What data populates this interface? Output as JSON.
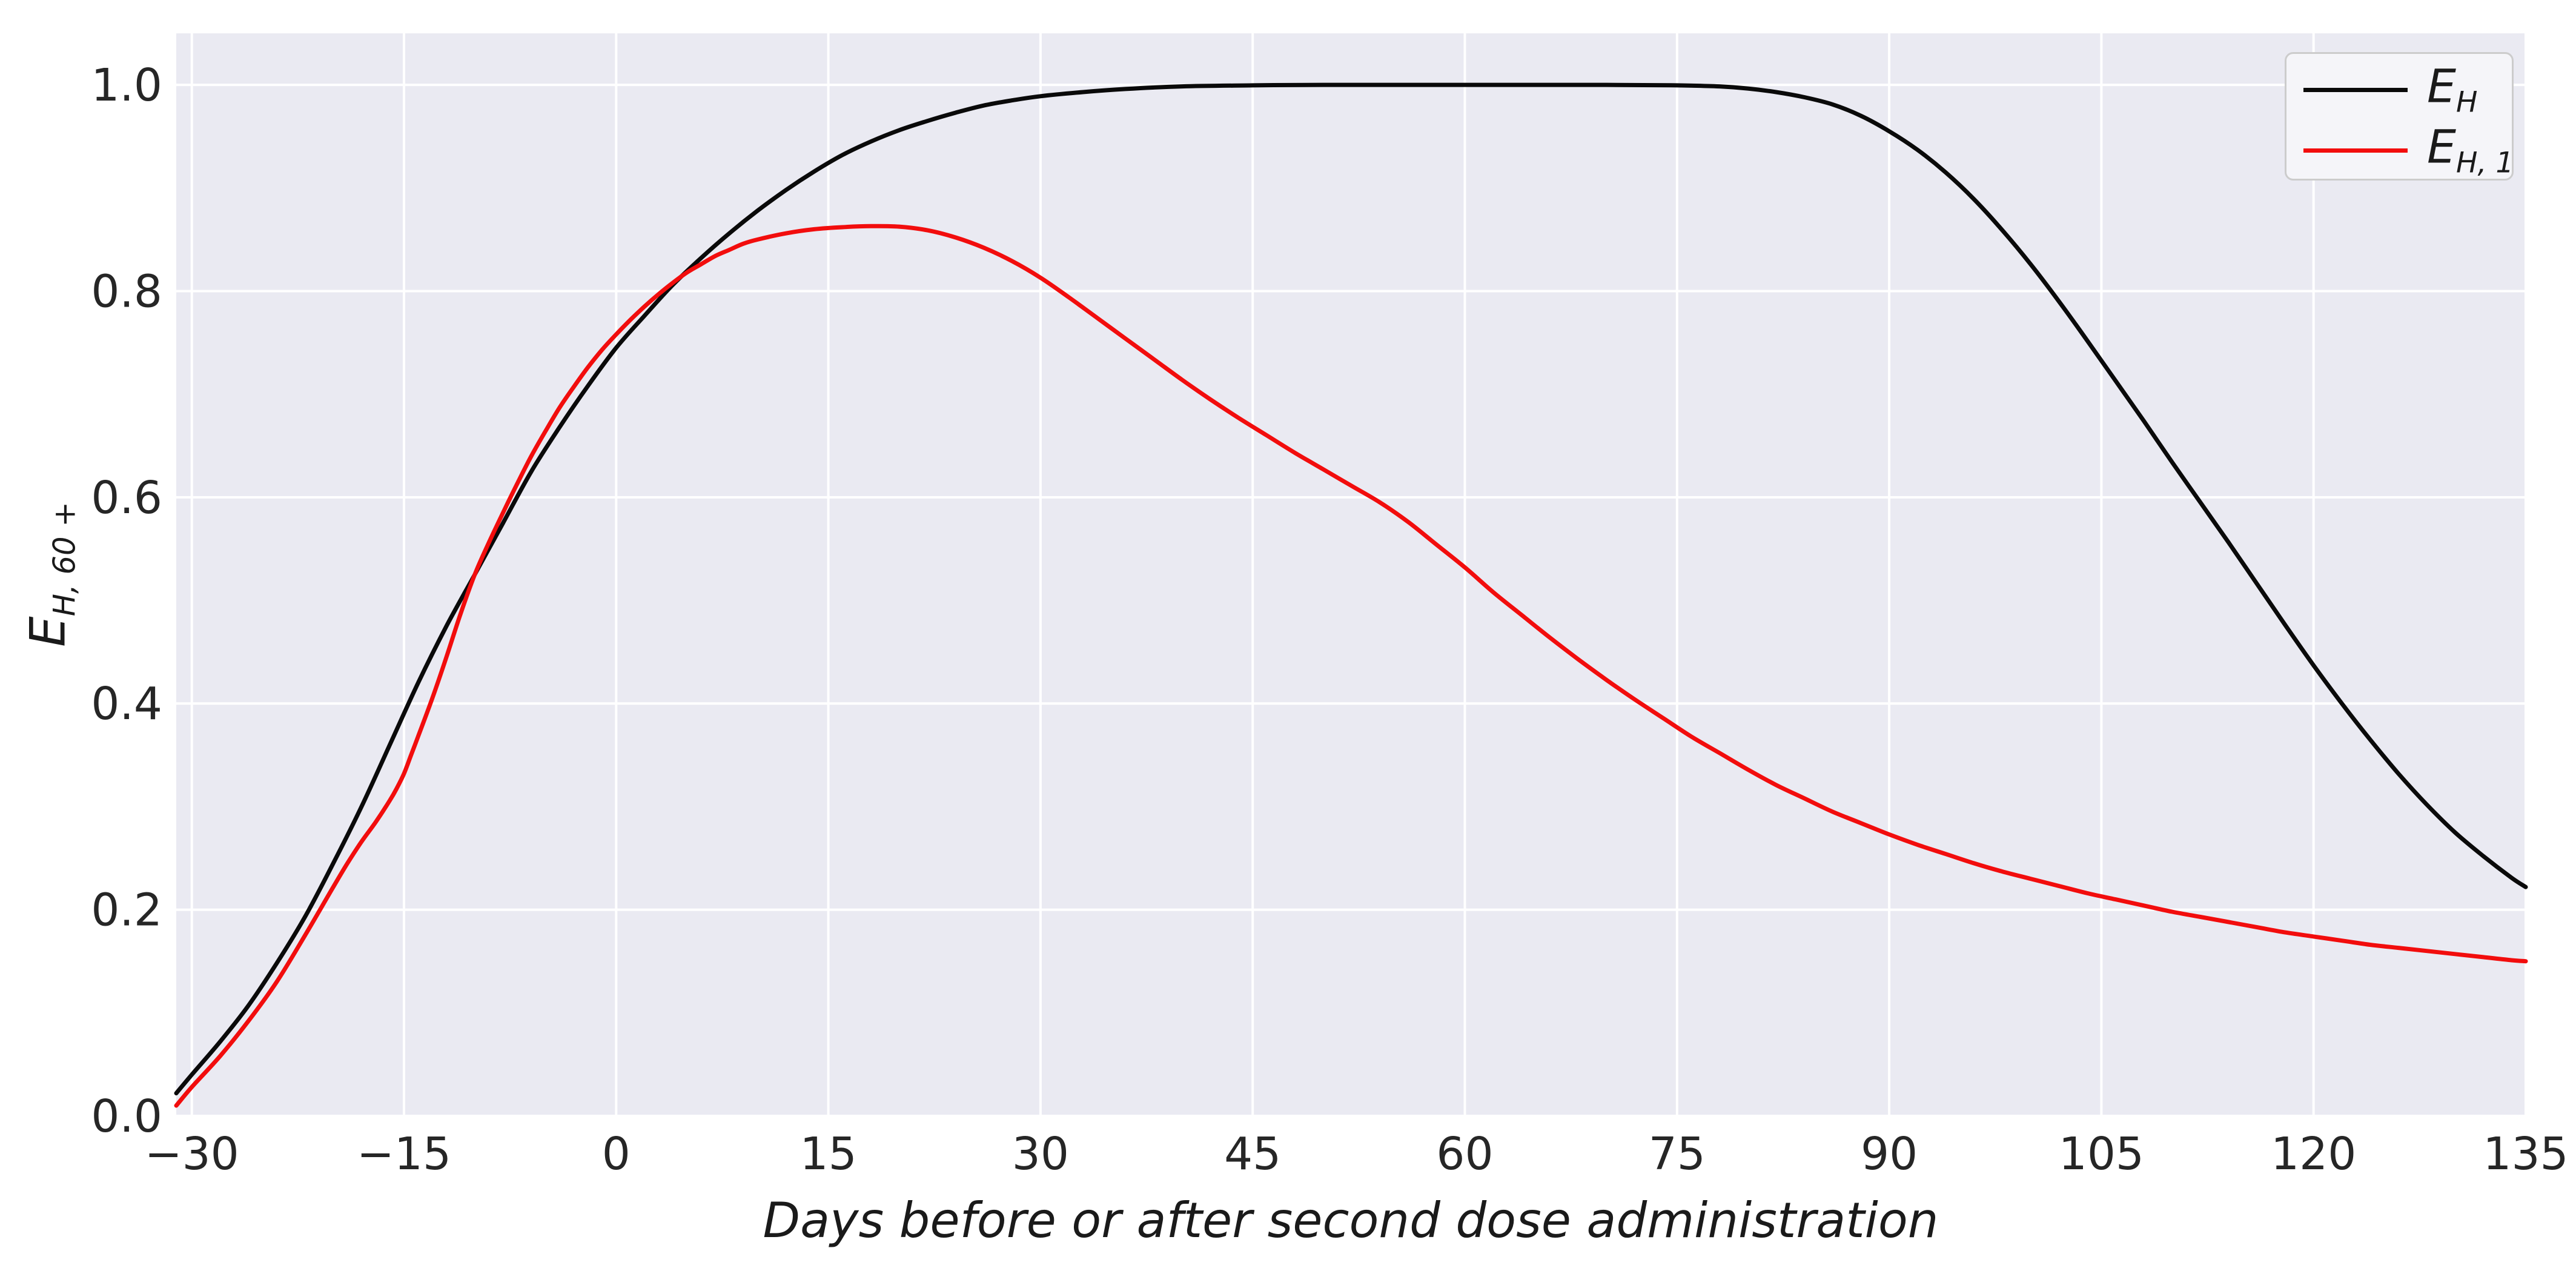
{
  "chart_data": {
    "type": "line",
    "title": "",
    "xlabel": "Days before or after second dose administration",
    "ylabel_parts": {
      "main": "E",
      "sub": "H, 60 +"
    },
    "xlim": [
      -31.1,
      135
    ],
    "ylim": [
      0,
      1.05
    ],
    "grid": true,
    "legend_position": "upper right",
    "plot_background": "#eaeaf2",
    "grid_color": "#ffffff",
    "tick_color": "#262626",
    "xticks": [
      {
        "v": -30,
        "label": "−30"
      },
      {
        "v": -15,
        "label": "−15"
      },
      {
        "v": 0,
        "label": "0"
      },
      {
        "v": 15,
        "label": "15"
      },
      {
        "v": 30,
        "label": "30"
      },
      {
        "v": 45,
        "label": "45"
      },
      {
        "v": 60,
        "label": "60"
      },
      {
        "v": 75,
        "label": "75"
      },
      {
        "v": 90,
        "label": "90"
      },
      {
        "v": 105,
        "label": "105"
      },
      {
        "v": 120,
        "label": "120"
      },
      {
        "v": 135,
        "label": "135"
      }
    ],
    "yticks": [
      {
        "v": 0.0,
        "label": "0.0"
      },
      {
        "v": 0.2,
        "label": "0.2"
      },
      {
        "v": 0.4,
        "label": "0.4"
      },
      {
        "v": 0.6,
        "label": "0.6"
      },
      {
        "v": 0.8,
        "label": "0.8"
      },
      {
        "v": 1.0,
        "label": "1.0"
      }
    ],
    "series": [
      {
        "name": "E_H",
        "label_parts": {
          "main": "E",
          "sub": "H"
        },
        "color": "#0a0a0a",
        "points": [
          [
            -31.1,
            0.022
          ],
          [
            -30,
            0.04
          ],
          [
            -28,
            0.072
          ],
          [
            -26,
            0.107
          ],
          [
            -24,
            0.148
          ],
          [
            -22,
            0.193
          ],
          [
            -20,
            0.245
          ],
          [
            -18,
            0.3
          ],
          [
            -16,
            0.36
          ],
          [
            -14,
            0.42
          ],
          [
            -12,
            0.475
          ],
          [
            -10,
            0.525
          ],
          [
            -8,
            0.575
          ],
          [
            -6,
            0.625
          ],
          [
            -4,
            0.668
          ],
          [
            -2,
            0.708
          ],
          [
            0,
            0.745
          ],
          [
            2,
            0.776
          ],
          [
            4,
            0.806
          ],
          [
            6,
            0.832
          ],
          [
            8,
            0.856
          ],
          [
            10,
            0.878
          ],
          [
            12,
            0.898
          ],
          [
            14,
            0.916
          ],
          [
            16,
            0.932
          ],
          [
            18,
            0.945
          ],
          [
            20,
            0.956
          ],
          [
            22,
            0.965
          ],
          [
            24,
            0.973
          ],
          [
            26,
            0.98
          ],
          [
            28,
            0.985
          ],
          [
            30,
            0.989
          ],
          [
            33,
            0.993
          ],
          [
            36,
            0.996
          ],
          [
            40,
            0.9985
          ],
          [
            45,
            0.9995
          ],
          [
            50,
            1.0
          ],
          [
            60,
            1.0
          ],
          [
            70,
            1.0
          ],
          [
            75,
            0.9995
          ],
          [
            78,
            0.9985
          ],
          [
            80,
            0.9965
          ],
          [
            82,
            0.993
          ],
          [
            84,
            0.988
          ],
          [
            86,
            0.981
          ],
          [
            88,
            0.97
          ],
          [
            90,
            0.955
          ],
          [
            92,
            0.937
          ],
          [
            94,
            0.915
          ],
          [
            96,
            0.889
          ],
          [
            98,
            0.859
          ],
          [
            100,
            0.826
          ],
          [
            102,
            0.79
          ],
          [
            104,
            0.752
          ],
          [
            106,
            0.713
          ],
          [
            108,
            0.674
          ],
          [
            110,
            0.634
          ],
          [
            112,
            0.595
          ],
          [
            114,
            0.556
          ],
          [
            116,
            0.516
          ],
          [
            118,
            0.476
          ],
          [
            120,
            0.437
          ],
          [
            122,
            0.4
          ],
          [
            124,
            0.365
          ],
          [
            126,
            0.332
          ],
          [
            128,
            0.302
          ],
          [
            130,
            0.275
          ],
          [
            132,
            0.252
          ],
          [
            134,
            0.231
          ],
          [
            135,
            0.222
          ]
        ]
      },
      {
        "name": "E_H,1",
        "label_parts": {
          "main": "E",
          "sub": "H, 1"
        },
        "color": "#f20d0d",
        "points": [
          [
            -31.1,
            0.01
          ],
          [
            -30,
            0.028
          ],
          [
            -28,
            0.058
          ],
          [
            -26,
            0.092
          ],
          [
            -24,
            0.13
          ],
          [
            -22,
            0.175
          ],
          [
            -20,
            0.222
          ],
          [
            -19,
            0.245
          ],
          [
            -18,
            0.266
          ],
          [
            -17,
            0.285
          ],
          [
            -16,
            0.306
          ],
          [
            -15.5,
            0.318
          ],
          [
            -15,
            0.332
          ],
          [
            -14.5,
            0.35
          ],
          [
            -14,
            0.368
          ],
          [
            -13,
            0.405
          ],
          [
            -12,
            0.445
          ],
          [
            -11,
            0.487
          ],
          [
            -10,
            0.525
          ],
          [
            -9,
            0.556
          ],
          [
            -8,
            0.585
          ],
          [
            -7,
            0.613
          ],
          [
            -6,
            0.64
          ],
          [
            -5,
            0.664
          ],
          [
            -4,
            0.687
          ],
          [
            -3,
            0.707
          ],
          [
            -2,
            0.726
          ],
          [
            -1,
            0.743
          ],
          [
            0,
            0.758
          ],
          [
            1,
            0.772
          ],
          [
            2,
            0.785
          ],
          [
            3,
            0.797
          ],
          [
            4,
            0.808
          ],
          [
            5,
            0.818
          ],
          [
            6,
            0.826
          ],
          [
            7,
            0.834
          ],
          [
            8,
            0.84
          ],
          [
            9,
            0.846
          ],
          [
            10,
            0.85
          ],
          [
            12,
            0.856
          ],
          [
            14,
            0.86
          ],
          [
            16,
            0.862
          ],
          [
            18,
            0.863
          ],
          [
            20,
            0.8625
          ],
          [
            22,
            0.859
          ],
          [
            24,
            0.852
          ],
          [
            26,
            0.842
          ],
          [
            28,
            0.829
          ],
          [
            30,
            0.813
          ],
          [
            32,
            0.794
          ],
          [
            34,
            0.774
          ],
          [
            36,
            0.754
          ],
          [
            38,
            0.734
          ],
          [
            40,
            0.714
          ],
          [
            42,
            0.695
          ],
          [
            44,
            0.677
          ],
          [
            46,
            0.66
          ],
          [
            48,
            0.643
          ],
          [
            50,
            0.627
          ],
          [
            52,
            0.611
          ],
          [
            54,
            0.595
          ],
          [
            56,
            0.576
          ],
          [
            58,
            0.554
          ],
          [
            60,
            0.532
          ],
          [
            62,
            0.508
          ],
          [
            64,
            0.486
          ],
          [
            66,
            0.464
          ],
          [
            68,
            0.443
          ],
          [
            70,
            0.423
          ],
          [
            72,
            0.404
          ],
          [
            74,
            0.386
          ],
          [
            76,
            0.368
          ],
          [
            78,
            0.352
          ],
          [
            80,
            0.336
          ],
          [
            82,
            0.321
          ],
          [
            84,
            0.308
          ],
          [
            86,
            0.295
          ],
          [
            88,
            0.284
          ],
          [
            90,
            0.273
          ],
          [
            92,
            0.263
          ],
          [
            94,
            0.254
          ],
          [
            96,
            0.245
          ],
          [
            98,
            0.237
          ],
          [
            100,
            0.23
          ],
          [
            102,
            0.223
          ],
          [
            104,
            0.216
          ],
          [
            106,
            0.21
          ],
          [
            108,
            0.204
          ],
          [
            110,
            0.198
          ],
          [
            112,
            0.193
          ],
          [
            114,
            0.188
          ],
          [
            116,
            0.183
          ],
          [
            118,
            0.178
          ],
          [
            120,
            0.174
          ],
          [
            122,
            0.17
          ],
          [
            124,
            0.166
          ],
          [
            126,
            0.163
          ],
          [
            128,
            0.16
          ],
          [
            130,
            0.157
          ],
          [
            132,
            0.154
          ],
          [
            134,
            0.151
          ],
          [
            135,
            0.15
          ]
        ]
      }
    ]
  }
}
